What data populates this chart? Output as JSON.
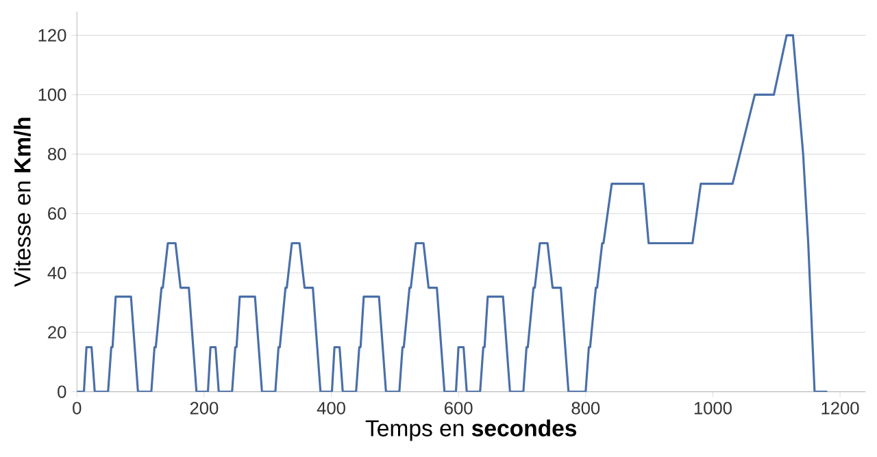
{
  "chart_data": {
    "type": "line",
    "xlabel": "Temps en **secondes**",
    "ylabel": "Vitesse en **Km/h**",
    "xlim": [
      0,
      1240
    ],
    "xticks": [
      0,
      200,
      400,
      600,
      800,
      1000,
      1200
    ],
    "ylim": [
      0,
      128
    ],
    "yticks": [
      0,
      20,
      40,
      60,
      80,
      100,
      120
    ],
    "grid": "y",
    "marker": "none",
    "line_style": "solid",
    "series": [
      {
        "color": "#4a6fa8",
        "x": [
          0,
          11,
          15,
          23,
          28,
          49,
          54,
          56,
          61,
          85,
          96,
          117,
          122,
          124,
          133,
          135,
          143,
          155,
          163,
          176,
          188,
          195,
          206,
          210,
          218,
          223,
          244,
          249,
          251,
          256,
          280,
          291,
          312,
          317,
          319,
          328,
          330,
          338,
          350,
          358,
          371,
          383,
          390,
          401,
          405,
          413,
          418,
          439,
          444,
          446,
          451,
          475,
          486,
          507,
          512,
          514,
          523,
          525,
          533,
          545,
          553,
          566,
          578,
          585,
          596,
          600,
          608,
          613,
          634,
          639,
          641,
          646,
          670,
          681,
          702,
          707,
          709,
          718,
          720,
          728,
          740,
          748,
          761,
          773,
          780,
          800,
          805,
          807,
          816,
          818,
          826,
          828,
          841,
          891,
          899,
          968,
          981,
          1031,
          1066,
          1096,
          1116,
          1126,
          1142,
          1150,
          1160,
          1180
        ],
        "values": [
          0,
          0,
          15,
          15,
          0,
          0,
          15,
          15,
          32,
          32,
          0,
          0,
          15,
          15,
          35,
          35,
          50,
          50,
          35,
          35,
          0,
          0,
          0,
          15,
          15,
          0,
          0,
          15,
          15,
          32,
          32,
          0,
          0,
          15,
          15,
          35,
          35,
          50,
          50,
          35,
          35,
          0,
          0,
          0,
          15,
          15,
          0,
          0,
          15,
          15,
          32,
          32,
          0,
          0,
          15,
          15,
          35,
          35,
          50,
          50,
          35,
          35,
          0,
          0,
          0,
          15,
          15,
          0,
          0,
          15,
          15,
          32,
          32,
          0,
          0,
          15,
          15,
          35,
          35,
          50,
          50,
          35,
          35,
          0,
          0,
          0,
          15,
          15,
          35,
          35,
          50,
          50,
          70,
          70,
          50,
          50,
          70,
          70,
          100,
          100,
          120,
          120,
          80,
          50,
          0,
          0
        ]
      }
    ]
  }
}
